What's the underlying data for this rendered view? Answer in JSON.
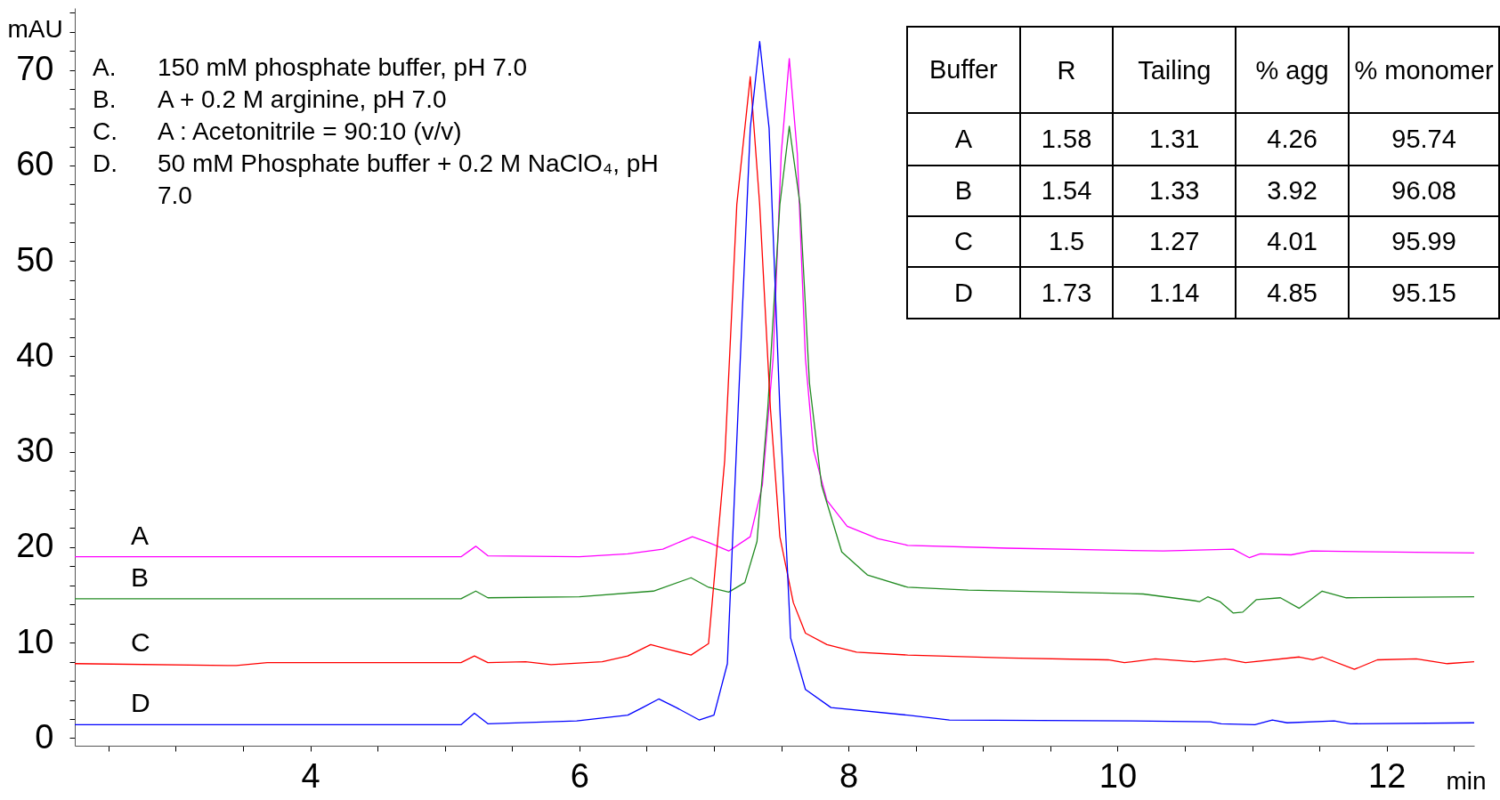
{
  "chart_data": [
    {
      "type": "line",
      "xlabel": "min",
      "ylabel": "mAU",
      "xlim": [
        2.25,
        12.65
      ],
      "ylim": [
        -0.8,
        76.5
      ],
      "xticks": [
        {
          "value": 2.5,
          "label": null
        },
        {
          "value": 3,
          "label": null
        },
        {
          "value": 3.5,
          "label": null
        },
        4,
        {
          "value": 4.5,
          "label": null
        },
        {
          "value": 5,
          "label": null
        },
        {
          "value": 5.5,
          "label": null
        },
        6,
        {
          "value": 6.5,
          "label": null
        },
        {
          "value": 7,
          "label": null
        },
        {
          "value": 7.5,
          "label": null
        },
        8,
        {
          "value": 8.5,
          "label": null
        },
        {
          "value": 9,
          "label": null
        },
        {
          "value": 9.5,
          "label": null
        },
        10,
        {
          "value": 10.5,
          "label": null
        },
        {
          "value": 11,
          "label": null
        },
        {
          "value": 11.5,
          "label": null
        },
        12,
        {
          "value": 12.5,
          "label": null
        }
      ],
      "yticks": [
        0,
        {
          "value": 2,
          "label": null
        },
        {
          "value": 4,
          "label": null
        },
        {
          "value": 6,
          "label": null
        },
        {
          "value": 8,
          "label": null
        },
        10,
        {
          "value": 12,
          "label": null
        },
        {
          "value": 14,
          "label": null
        },
        {
          "value": 16,
          "label": null
        },
        {
          "value": 18,
          "label": null
        },
        20,
        {
          "value": 22,
          "label": null
        },
        {
          "value": 24,
          "label": null
        },
        {
          "value": 26,
          "label": null
        },
        {
          "value": 28,
          "label": null
        },
        30,
        {
          "value": 32,
          "label": null
        },
        {
          "value": 34,
          "label": null
        },
        {
          "value": 36,
          "label": null
        },
        {
          "value": 38,
          "label": null
        },
        40,
        {
          "value": 42,
          "label": null
        },
        {
          "value": 44,
          "label": null
        },
        {
          "value": 46,
          "label": null
        },
        {
          "value": 48,
          "label": null
        },
        50,
        {
          "value": 52,
          "label": null
        },
        {
          "value": 54,
          "label": null
        },
        {
          "value": 56,
          "label": null
        },
        {
          "value": 58,
          "label": null
        },
        60,
        {
          "value": 62,
          "label": null
        },
        {
          "value": 64,
          "label": null
        },
        {
          "value": 66,
          "label": null
        },
        {
          "value": 68,
          "label": null
        },
        70,
        {
          "value": 72,
          "label": null
        },
        {
          "value": 74,
          "label": null
        },
        {
          "value": 76,
          "label": null
        }
      ],
      "grid": false,
      "annotations": [
        "A. 150 mM phosphate buffer, pH 7.0",
        "B. A + 0.2 M arginine, pH 7.0",
        "C. A : Acetonitrile = 90:10 (v/v)",
        "D. 50 mM Phosphate buffer + 0.2 M NaClO₄, pH 7.0"
      ],
      "series": [
        {
          "name": "A",
          "color": "#ff00ff",
          "x": [
            2.25,
            5.12,
            5.23,
            5.32,
            6.0,
            6.36,
            6.62,
            6.84,
            6.96,
            7.11,
            7.27,
            7.36,
            7.44,
            7.5,
            7.56,
            7.62,
            7.68,
            7.74,
            7.84,
            7.99,
            8.22,
            8.44,
            9.18,
            10.34,
            10.86,
            10.98,
            11.06,
            11.29,
            11.44,
            12.65
          ],
          "values": [
            19.0,
            19.0,
            20.1,
            19.1,
            19.0,
            19.3,
            19.8,
            21.1,
            20.5,
            19.6,
            21.1,
            26.5,
            39.8,
            61.2,
            71.2,
            61.2,
            39.8,
            30.2,
            24.9,
            22.2,
            20.9,
            20.2,
            19.9,
            19.6,
            19.8,
            18.9,
            19.3,
            19.2,
            19.6,
            19.4
          ]
        },
        {
          "name": "B",
          "color": "#228b22",
          "x": [
            2.25,
            5.12,
            5.23,
            5.32,
            6.0,
            6.55,
            6.83,
            6.96,
            7.11,
            7.23,
            7.32,
            7.4,
            7.49,
            7.56,
            7.64,
            7.71,
            7.8,
            7.95,
            8.14,
            8.44,
            8.89,
            10.19,
            10.57,
            10.61,
            10.67,
            10.76,
            10.86,
            10.93,
            11.03,
            11.21,
            11.35,
            11.52,
            11.7,
            12.65
          ],
          "values": [
            14.6,
            14.6,
            15.4,
            14.7,
            14.8,
            15.4,
            16.8,
            15.8,
            15.3,
            16.3,
            20.6,
            34.5,
            55.9,
            64.1,
            55.9,
            37.2,
            26.5,
            19.5,
            17.1,
            15.8,
            15.5,
            15.1,
            14.4,
            14.3,
            14.8,
            14.3,
            13.1,
            13.2,
            14.5,
            14.7,
            13.6,
            15.4,
            14.7,
            14.8
          ]
        },
        {
          "name": "C",
          "color": "#ff0000",
          "x": [
            2.25,
            3.45,
            3.68,
            5.12,
            5.22,
            5.32,
            5.6,
            5.79,
            6.17,
            6.36,
            6.53,
            6.66,
            6.83,
            6.96,
            7.08,
            7.17,
            7.27,
            7.34,
            7.42,
            7.49,
            7.59,
            7.68,
            7.84,
            8.06,
            8.44,
            9.18,
            9.93,
            10.05,
            10.28,
            10.57,
            10.8,
            10.95,
            11.35,
            11.45,
            11.52,
            11.76,
            11.93,
            12.22,
            12.45,
            12.65
          ],
          "values": [
            7.8,
            7.6,
            7.9,
            7.9,
            8.6,
            7.9,
            8.0,
            7.7,
            8.0,
            8.6,
            9.8,
            9.3,
            8.7,
            9.9,
            29.1,
            55.9,
            69.3,
            55.9,
            34.5,
            21.1,
            14.2,
            11.0,
            9.8,
            9.0,
            8.7,
            8.4,
            8.2,
            7.9,
            8.3,
            8.0,
            8.3,
            7.9,
            8.5,
            8.2,
            8.5,
            7.2,
            8.2,
            8.3,
            7.8,
            8.0
          ]
        },
        {
          "name": "D",
          "color": "#0000ff",
          "x": [
            2.25,
            5.12,
            5.22,
            5.32,
            5.98,
            6.36,
            6.47,
            6.59,
            6.72,
            6.89,
            7.0,
            7.1,
            7.18,
            7.27,
            7.34,
            7.41,
            7.49,
            7.57,
            7.68,
            7.87,
            8.44,
            8.75,
            10.11,
            10.69,
            10.77,
            11.02,
            11.15,
            11.26,
            11.61,
            11.73,
            12.65
          ],
          "values": [
            1.4,
            1.4,
            2.6,
            1.5,
            1.8,
            2.4,
            3.2,
            4.1,
            3.2,
            1.9,
            2.4,
            7.8,
            34.5,
            63.9,
            73.0,
            63.9,
            34.5,
            10.5,
            5.1,
            3.2,
            2.4,
            1.9,
            1.8,
            1.7,
            1.5,
            1.4,
            1.9,
            1.6,
            1.8,
            1.5,
            1.6
          ]
        }
      ]
    },
    {
      "type": "other",
      "legend_title": "Buffer",
      "categories": [
        "R",
        "Tailing",
        "% agg",
        "% monomer"
      ],
      "data_labels": true,
      "series": [
        {
          "name": "A",
          "values": [
            1.58,
            1.31,
            4.26,
            95.74
          ]
        },
        {
          "name": "B",
          "values": [
            1.54,
            1.33,
            3.92,
            96.08
          ]
        },
        {
          "name": "C",
          "values": [
            1.5,
            1.27,
            4.01,
            95.99
          ]
        },
        {
          "name": "D",
          "values": [
            1.73,
            1.14,
            4.85,
            95.15
          ]
        }
      ]
    }
  ]
}
